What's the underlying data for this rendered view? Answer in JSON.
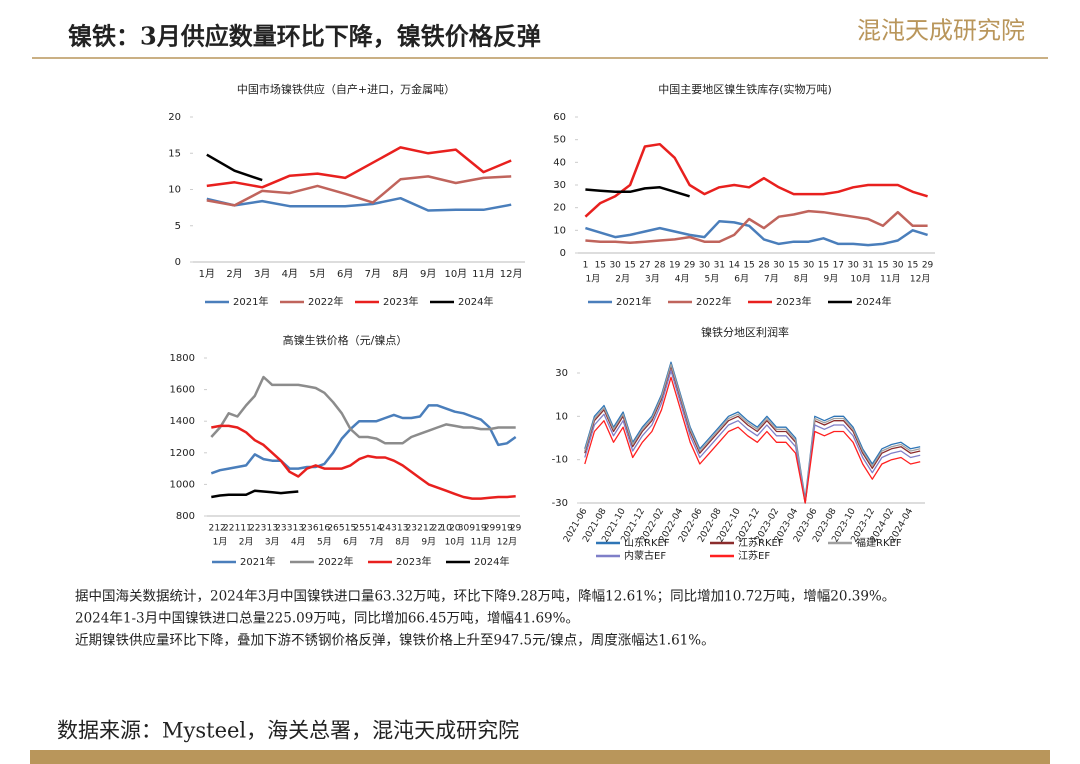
{
  "header": {
    "title": "镍铁：3月供应数量环比下降，镍铁价格反弹",
    "logo": "混沌天成研究院"
  },
  "chart_data": [
    {
      "type": "line",
      "title": "中国市场镍铁供应（自产+进口，万金属吨）",
      "categories": [
        "1月",
        "2月",
        "3月",
        "4月",
        "5月",
        "6月",
        "7月",
        "8月",
        "9月",
        "10月",
        "11月",
        "12月"
      ],
      "ylim": [
        0,
        20
      ],
      "yticks": [
        0,
        5,
        10,
        15,
        20
      ],
      "grid": false,
      "series": [
        {
          "name": "2021年",
          "color": "#4a7ebb",
          "values": [
            8.7,
            7.8,
            8.4,
            7.7,
            7.7,
            7.7,
            8.0,
            8.8,
            7.1,
            7.2,
            7.2,
            7.9
          ]
        },
        {
          "name": "2022年",
          "color": "#c0645c",
          "values": [
            8.5,
            7.8,
            9.8,
            9.5,
            10.5,
            9.4,
            8.2,
            11.4,
            11.8,
            10.9,
            11.6,
            11.8
          ]
        },
        {
          "name": "2023年",
          "color": "#e8201e",
          "values": [
            10.5,
            11.0,
            10.3,
            11.9,
            12.2,
            11.6,
            13.7,
            15.8,
            15.0,
            15.5,
            12.4,
            14.0
          ]
        },
        {
          "name": "2024年",
          "color": "#000000",
          "values": [
            14.8,
            12.6,
            11.3,
            null,
            null,
            null,
            null,
            null,
            null,
            null,
            null,
            null
          ]
        }
      ]
    },
    {
      "type": "line",
      "title": "中国主要地区镍生铁库存(实物万吨)",
      "categories": [
        "1",
        "15",
        "30",
        "15",
        "27",
        "28",
        "19",
        "29",
        "30",
        "31",
        "14",
        "15",
        "28",
        "30",
        "15",
        "30",
        "15",
        "17",
        "30",
        "31",
        "15",
        "30",
        "15",
        "29"
      ],
      "month_labels": [
        "1月",
        "2月",
        "3月",
        "4月",
        "5月",
        "6月",
        "7月",
        "8月",
        "9月",
        "10月",
        "11月",
        "12月"
      ],
      "ylim": [
        0,
        60
      ],
      "yticks": [
        0,
        10,
        20,
        30,
        40,
        50,
        60
      ],
      "grid": false,
      "series": [
        {
          "name": "2021年",
          "color": "#4a7ebb",
          "values": [
            11,
            9,
            7,
            8,
            9.5,
            11,
            9.5,
            8,
            7,
            14,
            13.5,
            12,
            6,
            4,
            5,
            5,
            6.5,
            4,
            4,
            3.5,
            4,
            5.5,
            10,
            8
          ]
        },
        {
          "name": "2022年",
          "color": "#c0645c",
          "values": [
            5.5,
            5,
            5,
            4.5,
            5,
            5.5,
            6,
            7,
            5,
            5,
            8,
            15,
            11,
            16,
            17,
            18.5,
            18,
            17,
            16,
            15,
            12,
            18,
            12,
            12
          ]
        },
        {
          "name": "2023年",
          "color": "#e8201e",
          "values": [
            16,
            22,
            25,
            30,
            47,
            48,
            42,
            30,
            26,
            29,
            30,
            29,
            33,
            29,
            26,
            26,
            26,
            27,
            29,
            30,
            30,
            30,
            27,
            25
          ]
        },
        {
          "name": "2024年",
          "color": "#000000",
          "values": [
            28,
            27.5,
            27,
            27,
            28.5,
            29,
            27,
            25,
            null,
            null,
            null,
            null,
            null,
            null,
            null,
            null,
            null,
            null,
            null,
            null,
            null,
            null,
            null,
            null
          ]
        }
      ]
    },
    {
      "type": "line",
      "title": "高镍生铁价格（元/镍点）",
      "categories": [
        "2",
        "12",
        "22",
        "1",
        "11",
        "22",
        "3",
        "13",
        "23",
        "3",
        "13",
        "23",
        "6",
        "16",
        "26",
        "5",
        "15",
        "25",
        "5",
        "14",
        "24",
        "3",
        "13",
        "23",
        "2",
        "12",
        "22",
        "10",
        "20",
        "30",
        "9",
        "19",
        "29",
        "9",
        "19",
        "29"
      ],
      "month_labels": [
        "1月",
        "2月",
        "3月",
        "4月",
        "5月",
        "6月",
        "7月",
        "8月",
        "9月",
        "10月",
        "11月",
        "12月"
      ],
      "ylim": [
        800,
        1800
      ],
      "yticks": [
        800,
        1000,
        1200,
        1400,
        1600,
        1800
      ],
      "grid": false,
      "series": [
        {
          "name": "2021年",
          "color": "#4a7ebb",
          "values": [
            1070,
            1090,
            1100,
            1110,
            1120,
            1190,
            1160,
            1150,
            1150,
            1100,
            1100,
            1110,
            1110,
            1130,
            1200,
            1290,
            1350,
            1400,
            1400,
            1400,
            1420,
            1440,
            1420,
            1420,
            1430,
            1500,
            1500,
            1480,
            1460,
            1450,
            1430,
            1410,
            1360,
            1250,
            1260,
            1300
          ]
        },
        {
          "name": "2022年",
          "color": "#8c8c8c",
          "values": [
            1300,
            1360,
            1450,
            1430,
            1500,
            1560,
            1680,
            1630,
            1630,
            1630,
            1630,
            1620,
            1610,
            1580,
            1520,
            1450,
            1350,
            1300,
            1300,
            1290,
            1260,
            1260,
            1260,
            1300,
            1320,
            1340,
            1360,
            1380,
            1370,
            1360,
            1360,
            1350,
            1350,
            1360,
            1360,
            1360
          ]
        },
        {
          "name": "2023年",
          "color": "#e8201e",
          "values": [
            1360,
            1370,
            1370,
            1360,
            1330,
            1280,
            1250,
            1200,
            1150,
            1080,
            1050,
            1100,
            1120,
            1100,
            1100,
            1100,
            1120,
            1160,
            1180,
            1170,
            1170,
            1150,
            1120,
            1080,
            1040,
            1000,
            980,
            960,
            940,
            920,
            910,
            910,
            915,
            920,
            920,
            925
          ]
        },
        {
          "name": "2024年",
          "color": "#000000",
          "values": [
            920,
            930,
            935,
            935,
            935,
            960,
            955,
            950,
            945,
            950,
            955,
            null,
            null,
            null,
            null,
            null,
            null,
            null,
            null,
            null,
            null,
            null,
            null,
            null,
            null,
            null,
            null,
            null,
            null,
            null,
            null,
            null,
            null,
            null,
            null,
            null
          ]
        }
      ]
    },
    {
      "type": "line",
      "title": "镍铁分地区利润率",
      "categories": [
        "2021-06",
        null,
        "2021-08",
        null,
        "2021-10",
        null,
        "2021-12",
        null,
        "2022-02",
        null,
        "2022-04",
        null,
        "2022-06",
        null,
        "2022-08",
        null,
        "2022-10",
        null,
        "2022-12",
        null,
        "2023-02",
        null,
        "2023-04",
        null,
        "2023-06",
        null,
        "2023-08",
        null,
        "2023-10",
        null,
        "2023-12",
        null,
        "2024-02",
        null,
        "2024-04",
        null
      ],
      "ylim": [
        -30,
        30
      ],
      "yticks": [
        -30,
        -10,
        10,
        30
      ],
      "grid": false,
      "series": [
        {
          "name": "山东RKEF",
          "color": "#2e75b6",
          "values": [
            -5,
            10,
            15,
            5,
            12,
            -2,
            5,
            10,
            20,
            35,
            20,
            5,
            -5,
            0,
            5,
            10,
            12,
            8,
            5,
            10,
            5,
            5,
            0,
            -28,
            10,
            8,
            10,
            10,
            5,
            -5,
            -12,
            -5,
            -3,
            -2,
            -5,
            -4
          ]
        },
        {
          "name": "江苏RKEF",
          "color": "#8b2c2c",
          "values": [
            -7,
            8,
            13,
            3,
            10,
            -4,
            3,
            8,
            18,
            33,
            18,
            3,
            -7,
            -2,
            3,
            8,
            10,
            6,
            3,
            8,
            3,
            3,
            -2,
            -30,
            8,
            6,
            8,
            8,
            3,
            -7,
            -14,
            -7,
            -5,
            -4,
            -7,
            -6
          ]
        },
        {
          "name": "福建RKEF",
          "color": "#a0a0a0",
          "values": [
            -6,
            9,
            14,
            4,
            11,
            -3,
            4,
            9,
            19,
            34,
            19,
            4,
            -6,
            -1,
            4,
            9,
            11,
            7,
            4,
            9,
            4,
            4,
            -1,
            -29,
            9,
            7,
            9,
            9,
            4,
            -6,
            -13,
            -6,
            -4,
            -3,
            -6,
            -5
          ]
        },
        {
          "name": "内蒙古EF",
          "color": "#7f7fc8",
          "values": [
            -9,
            6,
            11,
            1,
            8,
            -6,
            1,
            6,
            16,
            31,
            16,
            1,
            -9,
            -4,
            1,
            6,
            8,
            4,
            1,
            6,
            1,
            1,
            -4,
            -30,
            6,
            4,
            6,
            6,
            1,
            -9,
            -16,
            -9,
            -7,
            -6,
            -9,
            -8
          ]
        },
        {
          "name": "江苏EF",
          "color": "#ff2020",
          "values": [
            -12,
            3,
            8,
            -2,
            5,
            -9,
            -2,
            3,
            13,
            28,
            13,
            -2,
            -12,
            -7,
            -2,
            3,
            5,
            1,
            -2,
            3,
            -2,
            -2,
            -7,
            -30,
            3,
            1,
            3,
            3,
            -2,
            -12,
            -19,
            -12,
            -10,
            -9,
            -12,
            -11
          ]
        }
      ]
    }
  ],
  "text": {
    "lines": [
      "据中国海关数据统计，2024年3月中国镍铁进口量63.32万吨，环比下降9.28万吨，降幅12.61%；同比增加10.72万吨，增幅20.39%。",
      "2024年1-3月中国镍铁进口总量225.09万吨，同比增加66.45万吨，增幅41.69%。",
      "近期镍铁供应量环比下降，叠加下游不锈钢价格反弹，镍铁价格上升至947.5元/镍点，周度涨幅达1.61%。"
    ]
  },
  "footer": {
    "source": "数据来源：Mysteel，海关总署，混沌天成研究院"
  }
}
